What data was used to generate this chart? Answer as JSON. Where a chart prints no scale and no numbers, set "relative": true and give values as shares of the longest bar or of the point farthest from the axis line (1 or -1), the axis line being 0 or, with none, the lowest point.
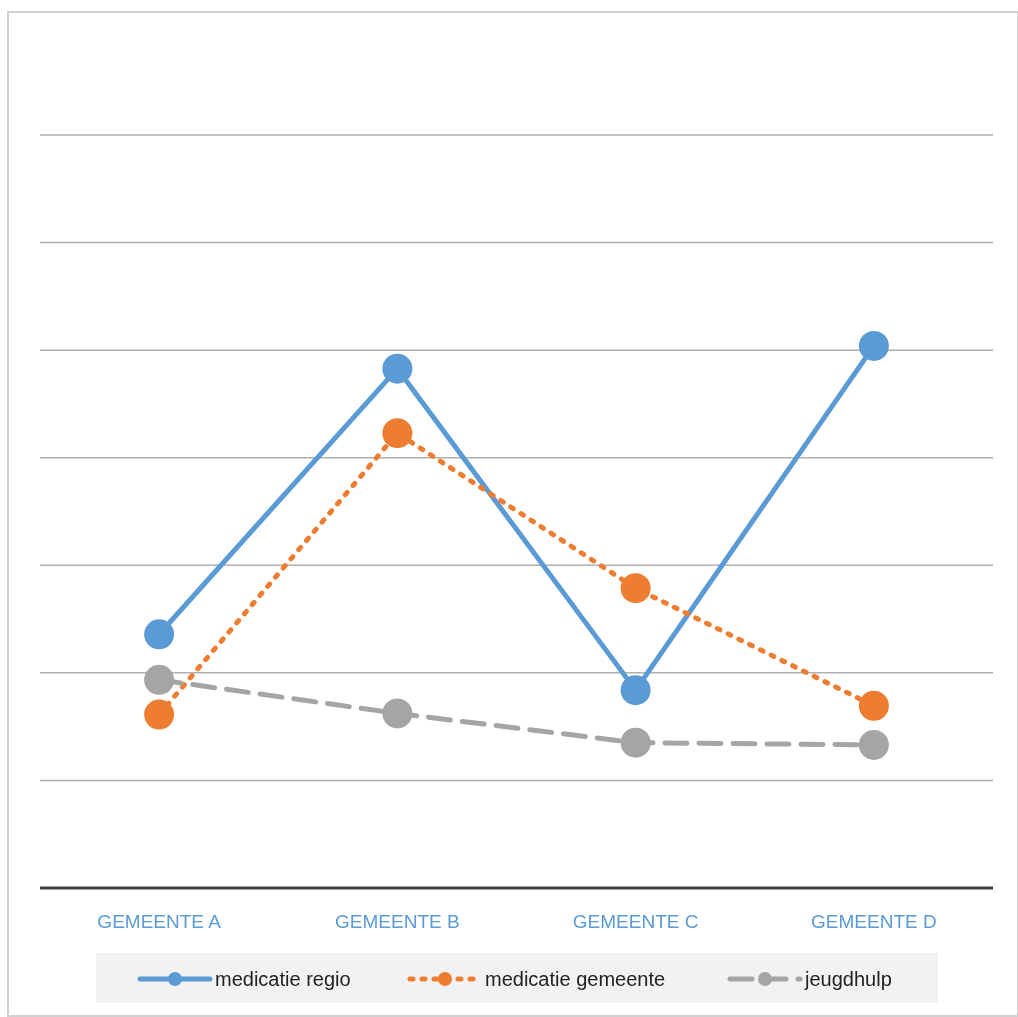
{
  "chart_data": {
    "type": "line",
    "relative": true,
    "categories": [
      "GEMEENTE A",
      "GEMEENTE B",
      "GEMEENTE C",
      "GEMEENTE D"
    ],
    "series": [
      {
        "name": "medicatie regio",
        "color": "#5b9bd5",
        "line_style": "solid",
        "values": [
          0.468,
          0.958,
          0.365,
          1
        ]
      },
      {
        "name": "medicatie gemeente",
        "color": "#ed7d31",
        "line_style": "dotted",
        "values": [
          0.32,
          0.839,
          0.553,
          0.336
        ]
      },
      {
        "name": "jeugdhulp",
        "color": "#a5a5a5",
        "line_style": "dashed",
        "values": [
          0.384,
          0.322,
          0.268,
          0.264
        ]
      }
    ],
    "marker": "circle",
    "grid": true,
    "legend": "bottom"
  }
}
